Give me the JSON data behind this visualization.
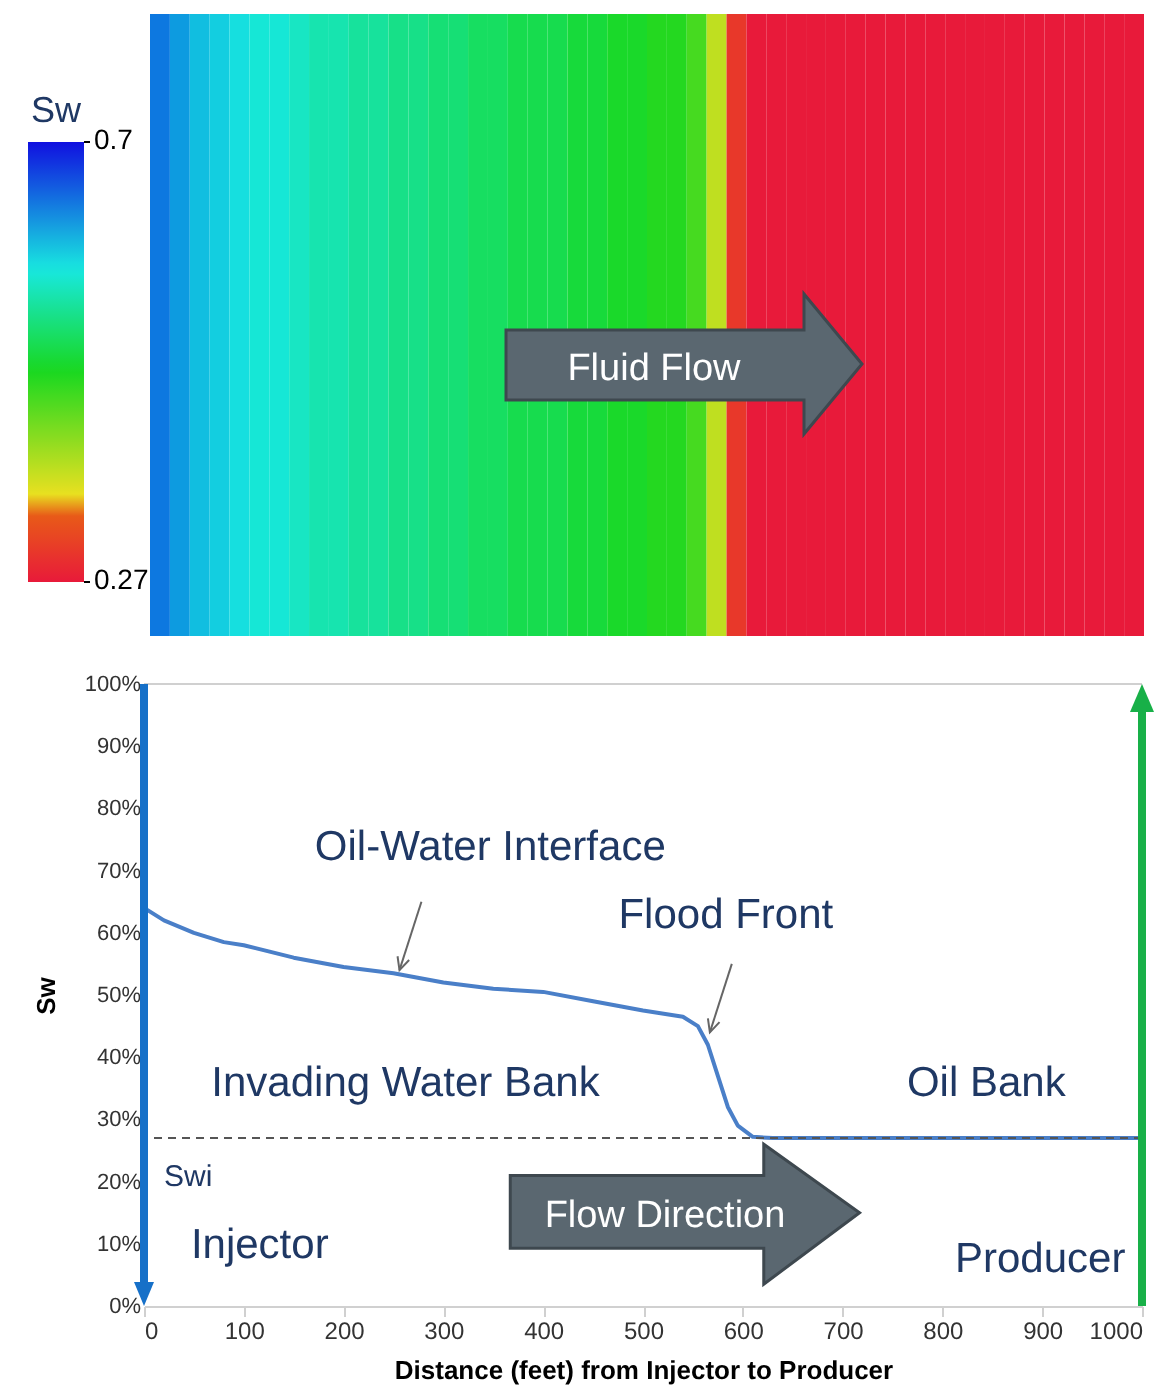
{
  "chart_data": [
    {
      "type": "heatmap",
      "categories": [
        null,
        null,
        null,
        null,
        null,
        null,
        null,
        null,
        null,
        null,
        null,
        null,
        null,
        null,
        null,
        null,
        null,
        null,
        null,
        null,
        null,
        null,
        null,
        null,
        null,
        null,
        null,
        null,
        null,
        null,
        null,
        null,
        null,
        null,
        null,
        null,
        null,
        null,
        null,
        null,
        null,
        null,
        null,
        null,
        null,
        null,
        null,
        null,
        null,
        null
      ],
      "y_categories": [
        null
      ],
      "cells": [
        [
          0.64,
          0.62,
          0.6,
          0.59,
          0.58,
          0.57,
          0.57,
          0.56,
          0.55,
          0.55,
          0.54,
          0.54,
          0.53,
          0.53,
          0.52,
          0.52,
          0.51,
          0.51,
          0.5,
          0.5,
          0.5,
          0.49,
          0.49,
          0.48,
          0.48,
          0.47,
          0.47,
          0.45,
          0.38,
          0.3,
          0.27,
          0.27,
          0.27,
          0.27,
          0.27,
          0.27,
          0.27,
          0.27,
          0.27,
          0.27,
          0.27,
          0.27,
          0.27,
          0.27,
          0.27,
          0.27,
          0.27,
          0.27,
          0.27,
          0.27
        ]
      ],
      "clim": [
        0.27,
        0.7
      ],
      "cticks": [
        0.27,
        0.7
      ],
      "clabel": "Sw",
      "annotations": [
        "Fluid Flow"
      ]
    },
    {
      "type": "line",
      "xlabel": "Distance (feet) from Injector to Producer",
      "ylabel": "Sw",
      "x": [
        0,
        20,
        50,
        80,
        100,
        150,
        200,
        250,
        300,
        350,
        400,
        450,
        500,
        540,
        555,
        565,
        575,
        585,
        595,
        610,
        630,
        1000
      ],
      "series": [
        {
          "color": "#4a7fc8",
          "values": [
            64,
            62,
            60,
            58.5,
            58,
            56,
            54.5,
            53.5,
            52,
            51,
            50.5,
            49,
            47.5,
            46.5,
            45,
            42,
            37,
            32,
            29,
            27.2,
            27,
            27
          ]
        }
      ],
      "xlim": [
        0,
        1000
      ],
      "xticks": [
        0,
        100,
        200,
        300,
        400,
        500,
        600,
        700,
        800,
        900,
        1000
      ],
      "ylim": [
        0,
        100
      ],
      "yticks": [
        {
          "value": 0,
          "label": "0%"
        },
        {
          "value": 10,
          "label": "10%"
        },
        {
          "value": 20,
          "label": "20%"
        },
        {
          "value": 30,
          "label": "30%"
        },
        {
          "value": 40,
          "label": "40%"
        },
        {
          "value": 50,
          "label": "50%"
        },
        {
          "value": 60,
          "label": "60%"
        },
        {
          "value": 70,
          "label": "70%"
        },
        {
          "value": 80,
          "label": "80%"
        },
        {
          "value": 90,
          "label": "90%"
        },
        {
          "value": 100,
          "label": "100%"
        }
      ],
      "ref_lines": [
        {
          "axis": "y",
          "value": 27,
          "label": "Swi",
          "color": "#555555",
          "line_style": "dashed"
        }
      ],
      "annotations": [
        {
          "text": "Oil-Water Interface",
          "x": 256,
          "y": 54
        },
        {
          "text": "Flood Front",
          "x": 567,
          "y": 44
        },
        "Invading Water Bank",
        "Oil Bank",
        "Injector",
        "Producer",
        "Flow Direction"
      ],
      "line_style": "solid",
      "marker": "none",
      "grid": false
    }
  ]
}
